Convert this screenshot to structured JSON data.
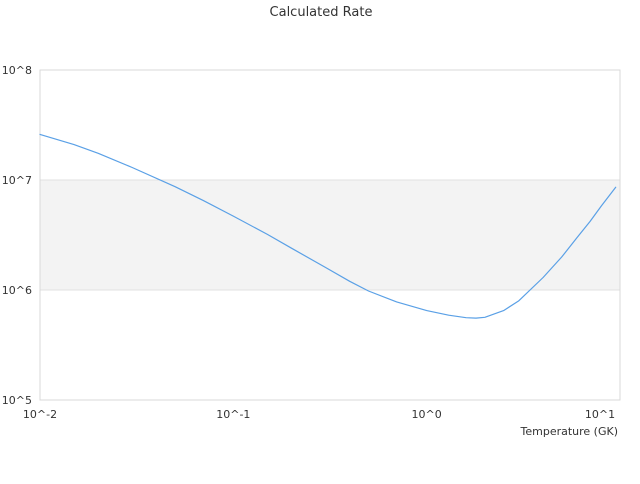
{
  "chart_data": {
    "type": "line",
    "title": "Calculated Rate",
    "xlabel": "Temperature (GK)",
    "ylabel": "",
    "x_scale": "log",
    "y_scale": "log",
    "xlim": [
      0.01,
      10
    ],
    "ylim": [
      100000,
      100000000
    ],
    "x_ticks": [
      {
        "value": 0.01,
        "label": "10^-2"
      },
      {
        "value": 0.1,
        "label": "10^-1"
      },
      {
        "value": 1,
        "label": "10^0"
      },
      {
        "value": 10,
        "label": "10^1"
      }
    ],
    "y_ticks": [
      {
        "value": 100000,
        "label": "10^5"
      },
      {
        "value": 1000000,
        "label": "10^6"
      },
      {
        "value": 10000000,
        "label": "10^7"
      },
      {
        "value": 100000000,
        "label": "10^8"
      }
    ],
    "grid": true,
    "legend": "none",
    "series": [
      {
        "color": "#5aa0e6",
        "x": [
          0.01,
          0.015,
          0.02,
          0.03,
          0.05,
          0.07,
          0.1,
          0.15,
          0.2,
          0.3,
          0.4,
          0.5,
          0.7,
          1.0,
          1.3,
          1.6,
          1.8,
          2.0,
          2.5,
          3.0,
          4.0,
          5.0,
          6.0,
          7.0,
          8.0,
          9.5
        ],
        "values": [
          26000000,
          21000000,
          17500000,
          13000000,
          8700000,
          6500000,
          4700000,
          3200000,
          2400000,
          1600000,
          1200000,
          980000,
          780000,
          650000,
          590000,
          560000,
          555000,
          565000,
          650000,
          800000,
          1300000,
          2000000,
          3000000,
          4200000,
          5800000,
          8600000
        ]
      }
    ]
  }
}
